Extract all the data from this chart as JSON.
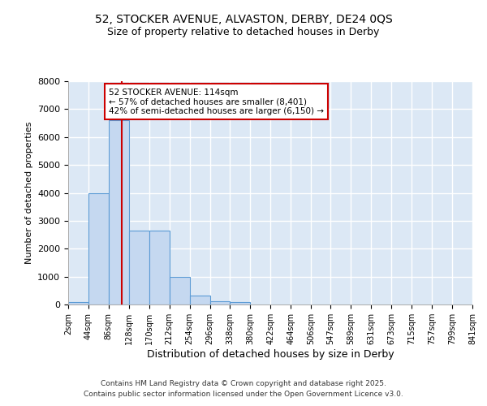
{
  "title_line1": "52, STOCKER AVENUE, ALVASTON, DERBY, DE24 0QS",
  "title_line2": "Size of property relative to detached houses in Derby",
  "xlabel": "Distribution of detached houses by size in Derby",
  "ylabel": "Number of detached properties",
  "bin_labels": [
    "2sqm",
    "44sqm",
    "86sqm",
    "128sqm",
    "170sqm",
    "212sqm",
    "254sqm",
    "296sqm",
    "338sqm",
    "380sqm",
    "422sqm",
    "464sqm",
    "506sqm",
    "547sqm",
    "589sqm",
    "631sqm",
    "673sqm",
    "715sqm",
    "757sqm",
    "799sqm",
    "841sqm"
  ],
  "bin_edges": [
    2,
    44,
    86,
    128,
    170,
    212,
    254,
    296,
    338,
    380,
    422,
    464,
    506,
    547,
    589,
    631,
    673,
    715,
    757,
    799,
    841
  ],
  "bar_heights": [
    75,
    4000,
    6600,
    2650,
    2650,
    1000,
    325,
    125,
    75,
    0,
    0,
    0,
    0,
    0,
    0,
    0,
    0,
    0,
    0,
    0
  ],
  "bar_color": "#c5d8f0",
  "bar_edge_color": "#5b9bd5",
  "bg_color": "#dce8f5",
  "grid_color": "#ffffff",
  "red_line_x": 114,
  "annotation_title": "52 STOCKER AVENUE: 114sqm",
  "annotation_line2": "← 57% of detached houses are smaller (8,401)",
  "annotation_line3": "42% of semi-detached houses are larger (6,150) →",
  "annotation_box_color": "#ffffff",
  "annotation_edge_color": "#cc0000",
  "red_line_color": "#cc0000",
  "ylim": [
    0,
    8000
  ],
  "yticks": [
    0,
    1000,
    2000,
    3000,
    4000,
    5000,
    6000,
    7000,
    8000
  ],
  "footer_line1": "Contains HM Land Registry data © Crown copyright and database right 2025.",
  "footer_line2": "Contains public sector information licensed under the Open Government Licence v3.0."
}
